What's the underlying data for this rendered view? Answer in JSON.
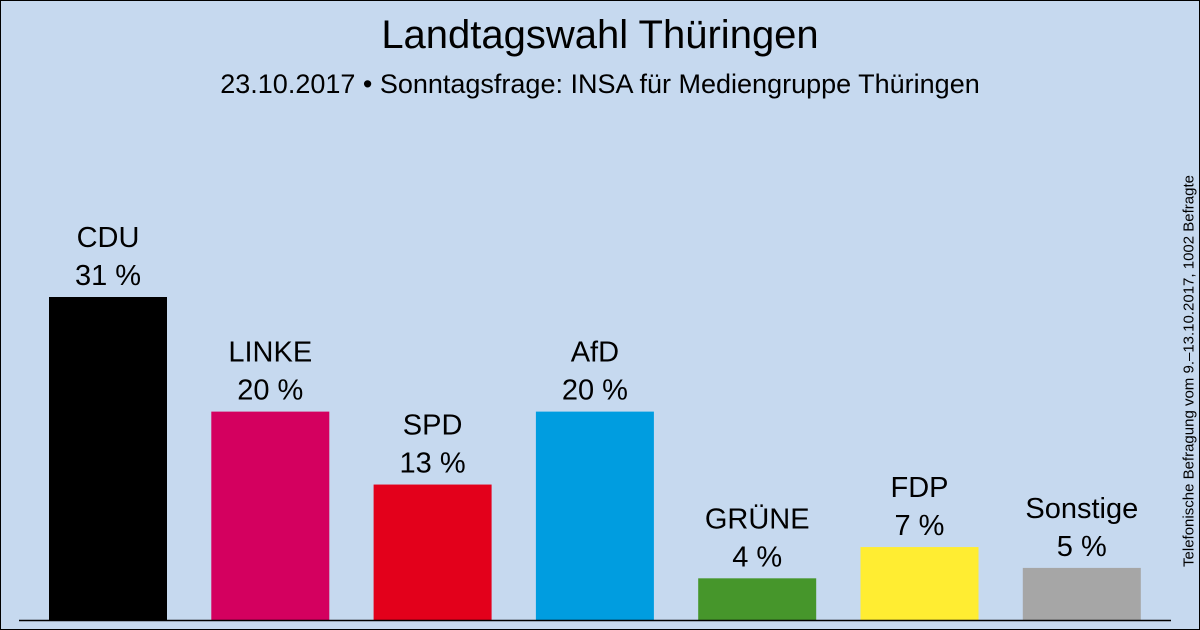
{
  "chart_data": {
    "type": "bar",
    "title": "Landtagswahl Thüringen",
    "subtitle": "23.10.2017 • Sonntagsfrage: INSA für Mediengruppe Thüringen",
    "side_note": "Telefonische Befragung vom 9.–13.10.2017, 1002 Befragte",
    "categories": [
      "CDU",
      "LINKE",
      "SPD",
      "AfD",
      "GRÜNE",
      "FDP",
      "Sonstige"
    ],
    "values": [
      31,
      20,
      13,
      20,
      4,
      7,
      5
    ],
    "value_labels": [
      "31 %",
      "20 %",
      "13 %",
      "20 %",
      "4 %",
      "7 %",
      "5 %"
    ],
    "colors": [
      "#000000",
      "#d4005f",
      "#e3001b",
      "#009de0",
      "#46962b",
      "#ffed32",
      "#a6a6a6"
    ],
    "xlabel": "",
    "ylabel": "",
    "ylim": [
      0,
      31
    ],
    "grid": false,
    "legend": "none"
  }
}
